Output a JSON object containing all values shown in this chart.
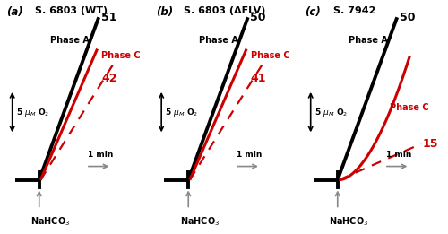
{
  "panels": [
    {
      "label": "(a)",
      "title": "S. 6803 (WT)",
      "phaseA_number": "51",
      "phaseC_number": "42",
      "phaseC_slope_number": null,
      "phaseC_curved": false
    },
    {
      "label": "(b)",
      "title": "S. 6803 (ΔFLV)",
      "phaseA_number": "50",
      "phaseC_number": "41",
      "phaseC_slope_number": null,
      "phaseC_curved": false
    },
    {
      "label": "(c)",
      "title": "S. 7942",
      "phaseA_number": "50",
      "phaseC_number": null,
      "phaseC_slope_number": "15",
      "phaseC_curved": true
    }
  ],
  "colors": {
    "black": "#000000",
    "red": "#cc0000",
    "gray": "#888888"
  },
  "background": "#ffffff"
}
